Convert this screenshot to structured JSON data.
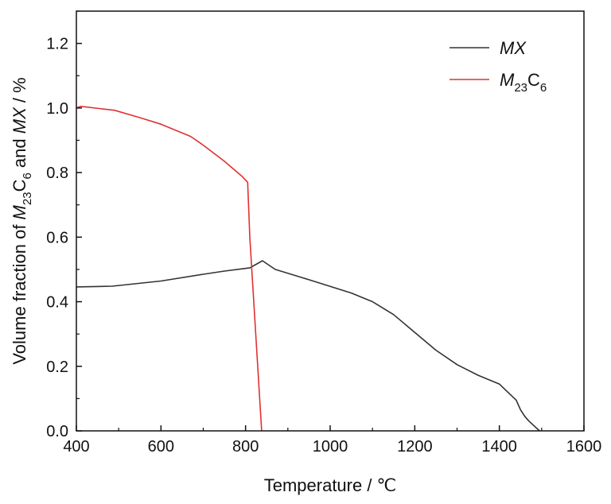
{
  "chart_data": {
    "type": "line",
    "xlabel": "Temperature / ℃",
    "ylabel": {
      "parts": [
        {
          "text": "Volume fraction of ",
          "italic": false,
          "sub": false
        },
        {
          "text": "M",
          "italic": true,
          "sub": false
        },
        {
          "text": "23",
          "italic": false,
          "sub": true
        },
        {
          "text": "C",
          "italic": false,
          "sub": false
        },
        {
          "text": "6",
          "italic": false,
          "sub": true
        },
        {
          "text": " and ",
          "italic": false,
          "sub": false
        },
        {
          "text": "MX",
          "italic": true,
          "sub": false
        },
        {
          "text": " / %",
          "italic": false,
          "sub": false
        }
      ]
    },
    "xlim": [
      400,
      1600
    ],
    "ylim": [
      0.0,
      1.3
    ],
    "xticks": [
      "400",
      "600",
      "800",
      "1000",
      "1200",
      "1400",
      "1600"
    ],
    "yticks": [
      "0.0",
      "0.2",
      "0.4",
      "0.6",
      "0.8",
      "1.0",
      "1.2"
    ],
    "grid": false,
    "legend_position": "top-right",
    "series": [
      {
        "name": "MX",
        "legend": [
          {
            "text": "MX",
            "italic": true,
            "sub": false
          }
        ],
        "color": "#333333",
        "x": [
          400,
          485,
          600,
          700,
          750,
          810,
          820,
          840,
          870,
          950,
          1050,
          1100,
          1150,
          1200,
          1250,
          1300,
          1350,
          1400,
          1420,
          1440,
          1450,
          1460,
          1470,
          1495
        ],
        "y": [
          0.446,
          0.448,
          0.464,
          0.485,
          0.495,
          0.505,
          0.512,
          0.527,
          0.5,
          0.468,
          0.427,
          0.4,
          0.36,
          0.305,
          0.25,
          0.205,
          0.172,
          0.145,
          0.12,
          0.095,
          0.065,
          0.045,
          0.03,
          0.0
        ]
      },
      {
        "name": "M23C6",
        "legend": [
          {
            "text": "M",
            "italic": true,
            "sub": false
          },
          {
            "text": "23",
            "italic": false,
            "sub": true
          },
          {
            "text": "C",
            "italic": false,
            "sub": false
          },
          {
            "text": "6",
            "italic": false,
            "sub": true
          }
        ],
        "color": "#e03131",
        "x": [
          400,
          410,
          490,
          550,
          600,
          670,
          700,
          750,
          790,
          805,
          810,
          838
        ],
        "y": [
          1.0,
          1.005,
          0.993,
          0.97,
          0.95,
          0.912,
          0.885,
          0.835,
          0.79,
          0.77,
          0.6,
          0.0
        ]
      }
    ]
  }
}
